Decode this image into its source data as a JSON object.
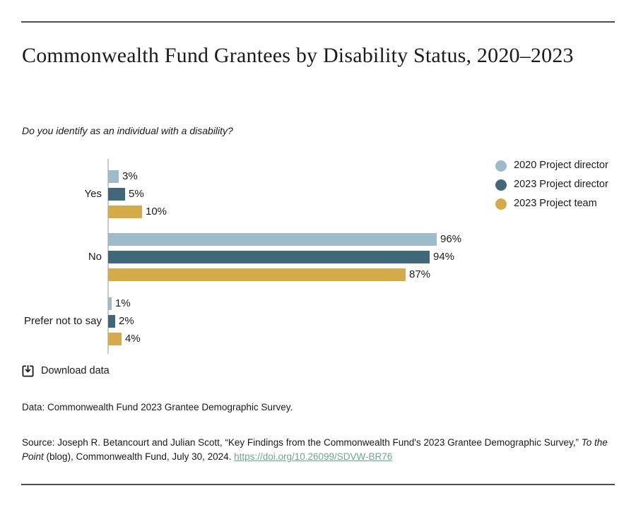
{
  "header": {
    "title": "Commonwealth Fund Grantees by Disability Status, 2020–2023",
    "subtitle": "Do you identify as an individual with a disability?"
  },
  "chart_data": {
    "type": "bar",
    "orientation": "horizontal",
    "title": "Commonwealth Fund Grantees by Disability Status, 2020–2023",
    "subtitle": "Do you identify as an individual with a disability?",
    "categories": [
      "Yes",
      "No",
      "Prefer not to say"
    ],
    "series": [
      {
        "name": "2020 Project director",
        "color": "#9EBBC9",
        "values": [
          3,
          96,
          1
        ]
      },
      {
        "name": "2023 Project director",
        "color": "#406878",
        "values": [
          5,
          94,
          2
        ]
      },
      {
        "name": "2023 Project team",
        "color": "#D4AB4B",
        "values": [
          10,
          87,
          4
        ]
      }
    ],
    "value_suffix": "%",
    "xlim": [
      0,
      100
    ],
    "grid": false,
    "legend_position": "top-right",
    "axis_color": "#c9c9c9"
  },
  "download": {
    "label": "Download data"
  },
  "footer": {
    "data_note": "Data: Commonwealth Fund 2023 Grantee Demographic Survey.",
    "source_prefix": "Source: Joseph R. Betancourt and Julian Scott, “Key Findings from the Commonwealth Fund's 2023 Grantee Demographic Survey,” ",
    "source_italic": "To the Point",
    "source_middle": " (blog), Commonwealth Fund, July 30, 2024. ",
    "source_link": "https://doi.org/10.26099/SDVW-BR76"
  },
  "colors": {
    "rule": "#4d4d4d",
    "text": "#1a1a1a",
    "link": "#6fa491"
  }
}
